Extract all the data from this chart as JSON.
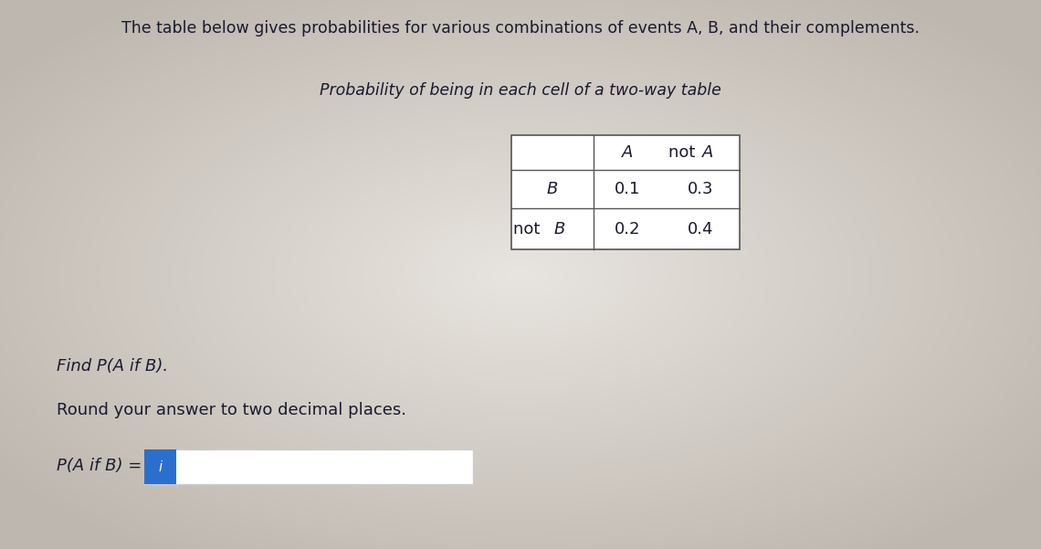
{
  "bg_color_center": "#e8e4df",
  "bg_color_edge": "#c5bfb8",
  "title_text": "The table below gives probabilities for various combinations of events A, B, and their complements.",
  "subtitle_text": "Probability of being in each cell of a two-way table",
  "table_col_headers": [
    "A",
    "not A"
  ],
  "table_row_headers": [
    "B",
    "not B"
  ],
  "table_values": [
    [
      0.1,
      0.3
    ],
    [
      0.2,
      0.4
    ]
  ],
  "find_text": "Find P(A if B).",
  "round_text": "Round your answer to two decimal places.",
  "answer_label": "P(A if B) =",
  "answer_box_color": "#2b6fce",
  "answer_box_text": "i",
  "white_bg": "#f0ede9",
  "title_fontsize": 12.5,
  "subtitle_fontsize": 12.5,
  "body_fontsize": 13,
  "table_fontsize": 13
}
